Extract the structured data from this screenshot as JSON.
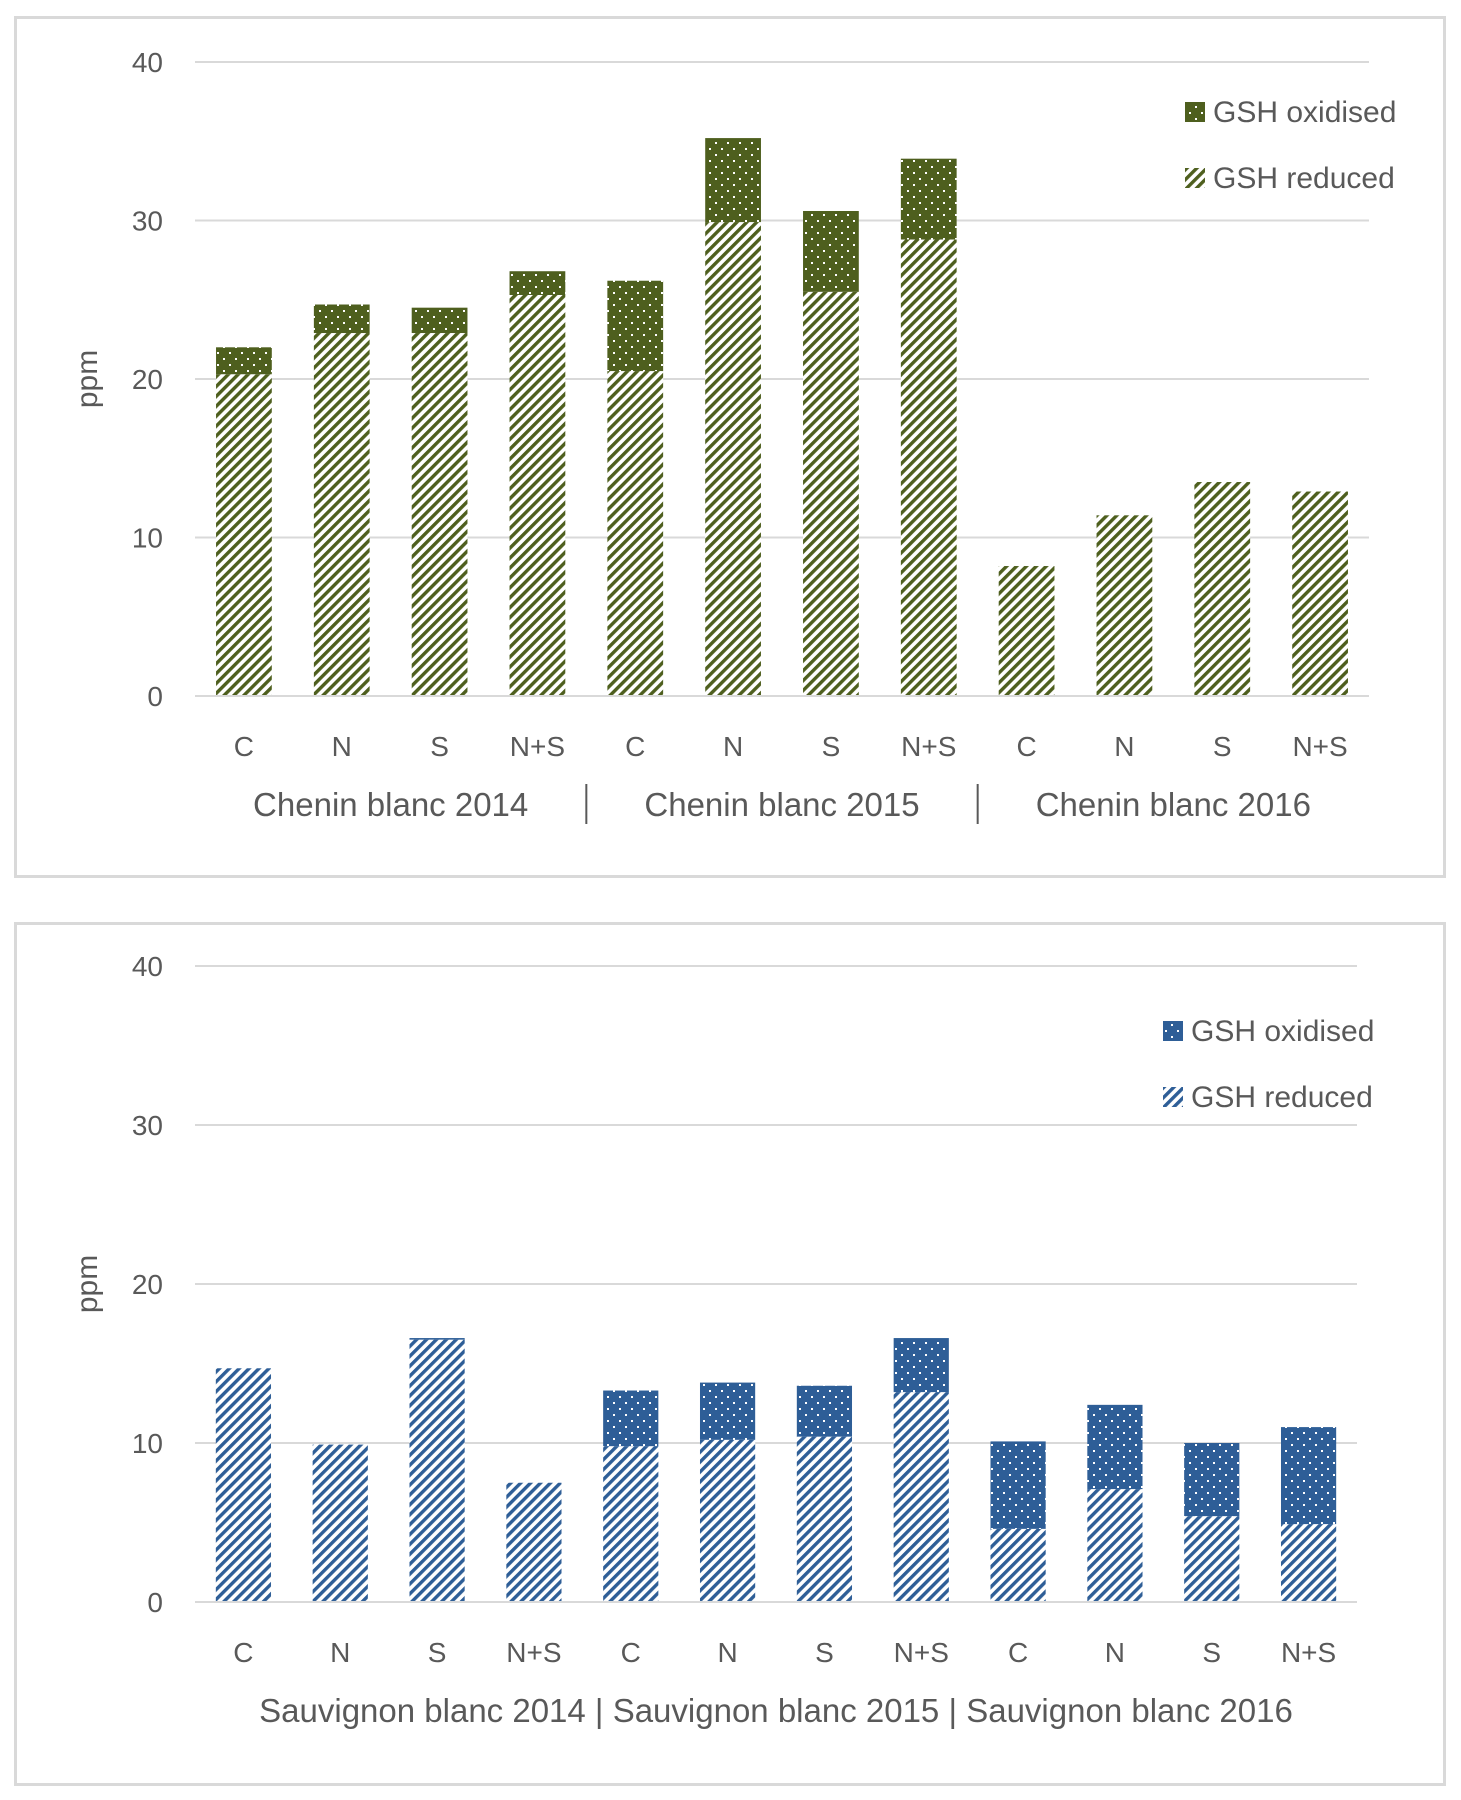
{
  "colors": {
    "chenin": "#4e5f1e",
    "sauvignon": "#2e5e97",
    "grid": "#d9d9d9",
    "text": "#595959"
  },
  "chart_data": [
    {
      "type": "bar",
      "stacked": true,
      "ylabel": "ppm",
      "ylim": [
        0,
        40
      ],
      "yticks": [
        0,
        10,
        20,
        30,
        40
      ],
      "grid": true,
      "legend_position": "top-right",
      "color": "#4e5f1e",
      "categories": [
        "C",
        "N",
        "S",
        "N+S",
        "C",
        "N",
        "S",
        "N+S",
        "C",
        "N",
        "S",
        "N+S"
      ],
      "groups": [
        "Chenin blanc 2014",
        "Chenin blanc 2015",
        "Chenin blanc 2016"
      ],
      "group_separator": "|",
      "series": [
        {
          "name": "GSH reduced",
          "pattern": "hatch",
          "values": [
            20.3,
            22.9,
            22.9,
            25.3,
            20.5,
            29.9,
            25.5,
            28.8,
            8.2,
            11.4,
            13.5,
            12.9
          ]
        },
        {
          "name": "GSH oxidised",
          "pattern": "dots",
          "values": [
            1.7,
            1.8,
            1.6,
            1.5,
            5.7,
            5.3,
            5.1,
            5.1,
            0,
            0,
            0,
            0
          ]
        }
      ]
    },
    {
      "type": "bar",
      "stacked": true,
      "ylabel": "ppm",
      "ylim": [
        0,
        40
      ],
      "yticks": [
        0,
        10,
        20,
        30,
        40
      ],
      "grid": true,
      "legend_position": "top-right",
      "color": "#2e5e97",
      "categories": [
        "C",
        "N",
        "S",
        "N+S",
        "C",
        "N",
        "S",
        "N+S",
        "C",
        "N",
        "S",
        "N+S"
      ],
      "groups": [
        "Sauvignon blanc 2014",
        "Sauvignon blanc 2015",
        "Sauvignon blanc 2016"
      ],
      "group_separator": "|",
      "series": [
        {
          "name": "GSH reduced",
          "pattern": "hatch",
          "values": [
            14.7,
            9.9,
            16.5,
            7.5,
            9.8,
            10.2,
            10.4,
            13.2,
            4.6,
            7.1,
            5.4,
            4.9
          ]
        },
        {
          "name": "GSH oxidised",
          "pattern": "dots",
          "values": [
            0,
            0,
            0.1,
            0,
            3.5,
            3.6,
            3.2,
            3.4,
            5.5,
            5.3,
            4.6,
            6.1
          ]
        }
      ]
    }
  ]
}
